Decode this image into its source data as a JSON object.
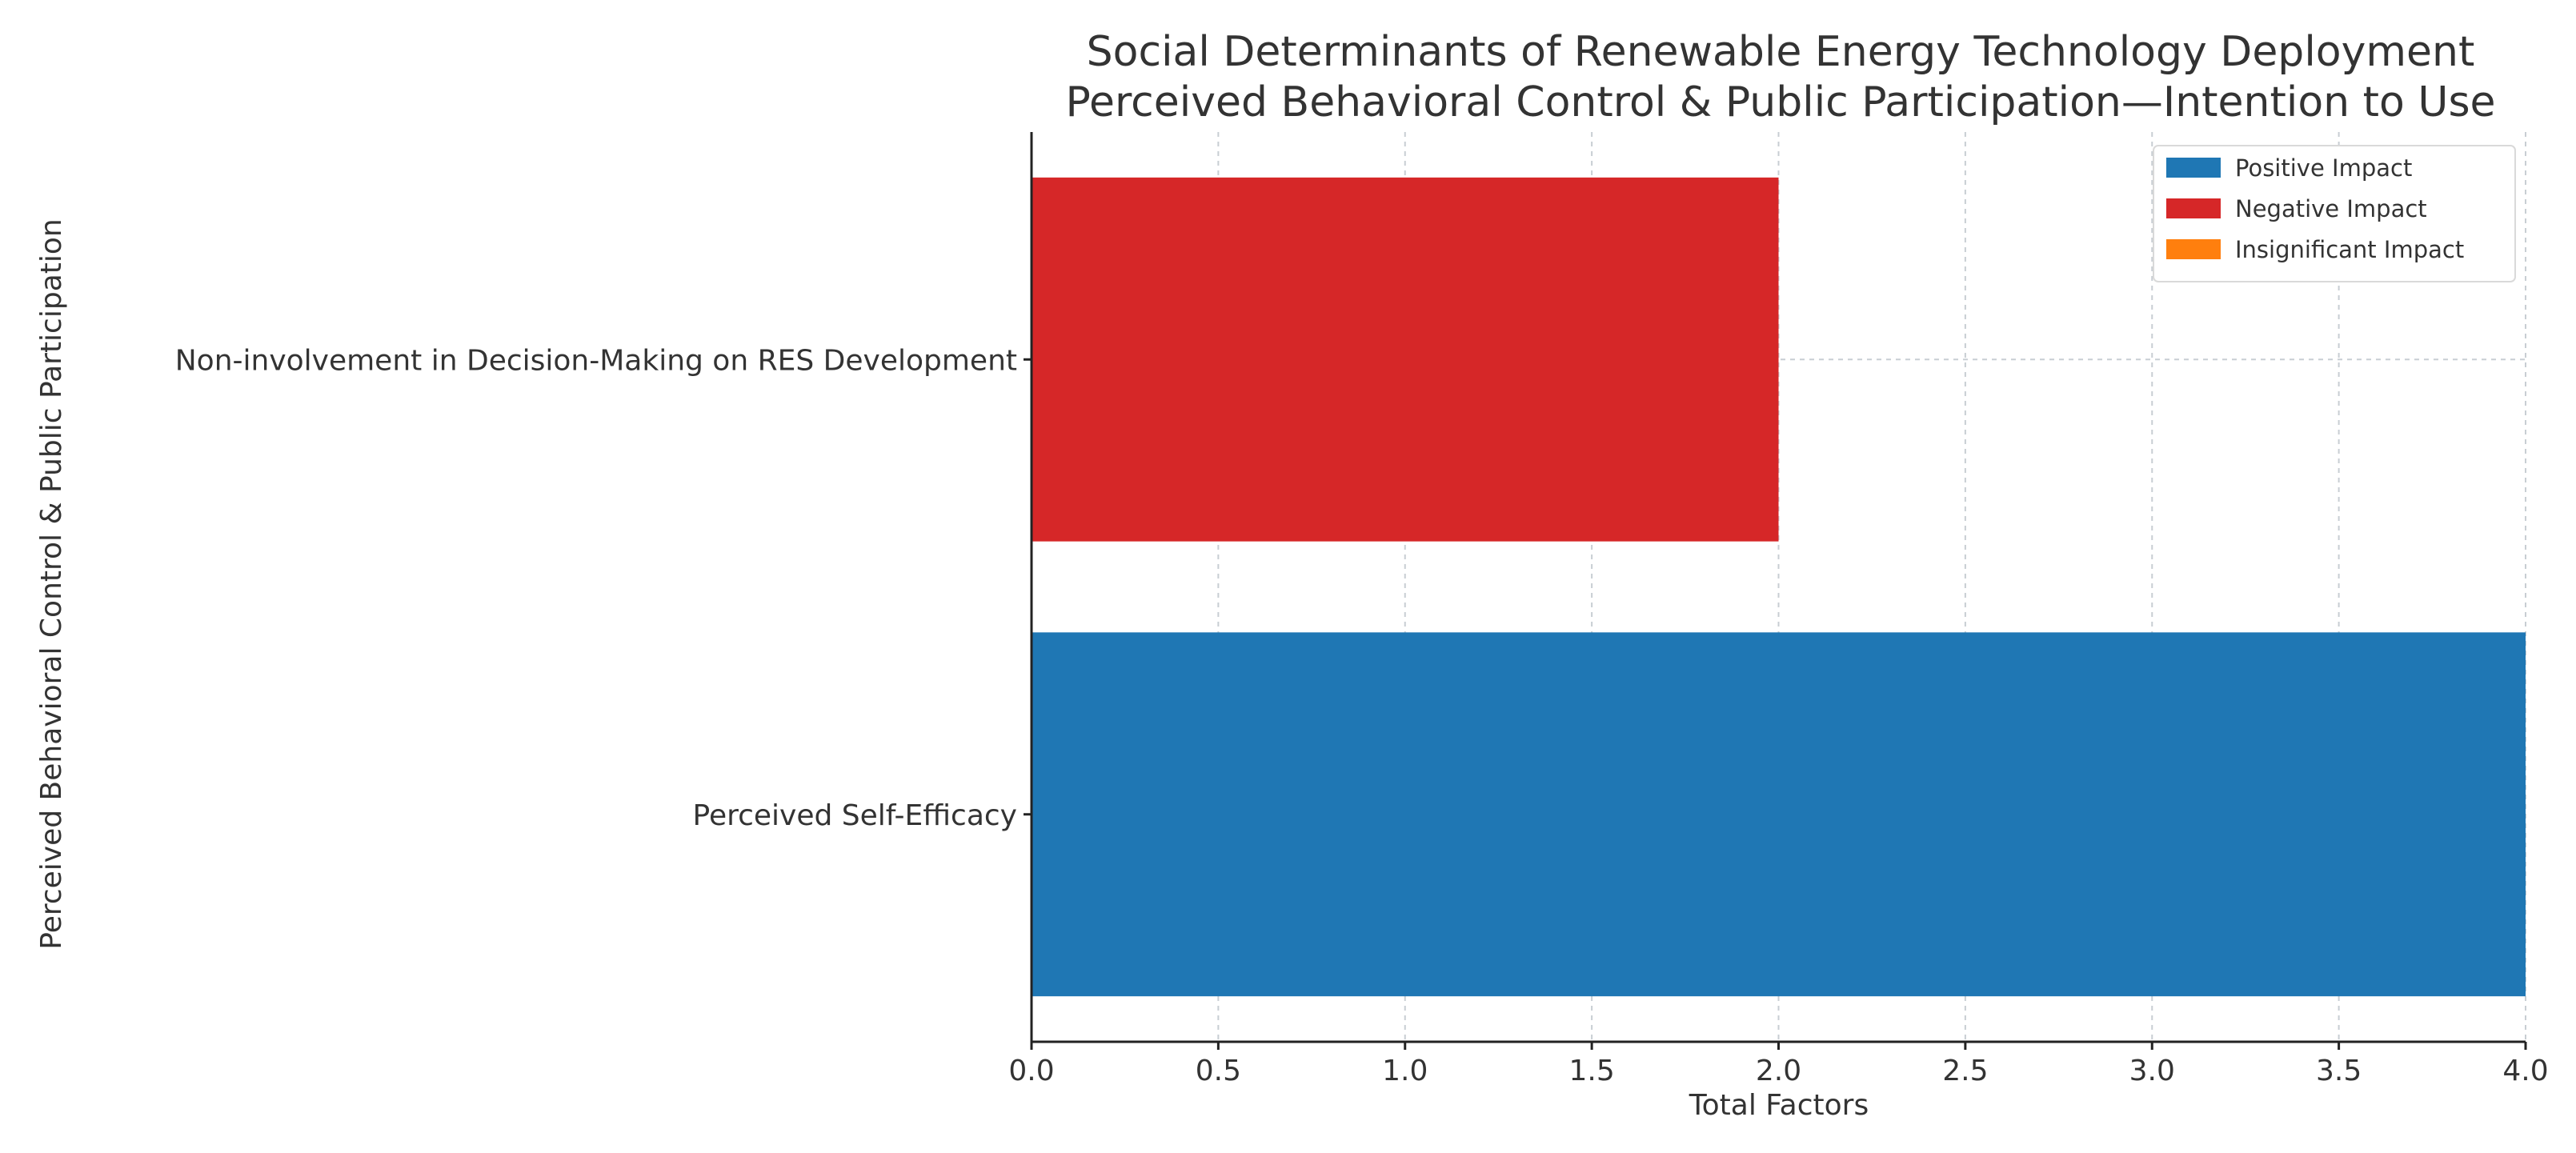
{
  "chart_data": {
    "type": "bar",
    "orientation": "horizontal",
    "title": "Social Determinants of Renewable Energy Technology Deployment",
    "subtitle": "Perceived Behavioral Control & Public Participation—Intention to Use",
    "xlabel": "Total Factors",
    "ylabel": "Perceived Behavioral Control & Public Participation",
    "xlim": [
      0,
      4.0
    ],
    "xticks": [
      "0.0",
      "0.5",
      "1.0",
      "1.5",
      "2.0",
      "2.5",
      "3.0",
      "3.5",
      "4.0"
    ],
    "grid": true,
    "categories": [
      "Non-involvement in Decision-Making on RES Development",
      "Perceived Self-Efficacy"
    ],
    "values": [
      2,
      4
    ],
    "bar_impact": [
      "Negative Impact",
      "Positive Impact"
    ],
    "legend": {
      "position": "top-right",
      "entries": [
        {
          "label": "Positive Impact",
          "color": "#1f77b4"
        },
        {
          "label": "Negative Impact",
          "color": "#d62728"
        },
        {
          "label": "Insignificant Impact",
          "color": "#ff7f0e"
        }
      ]
    }
  }
}
